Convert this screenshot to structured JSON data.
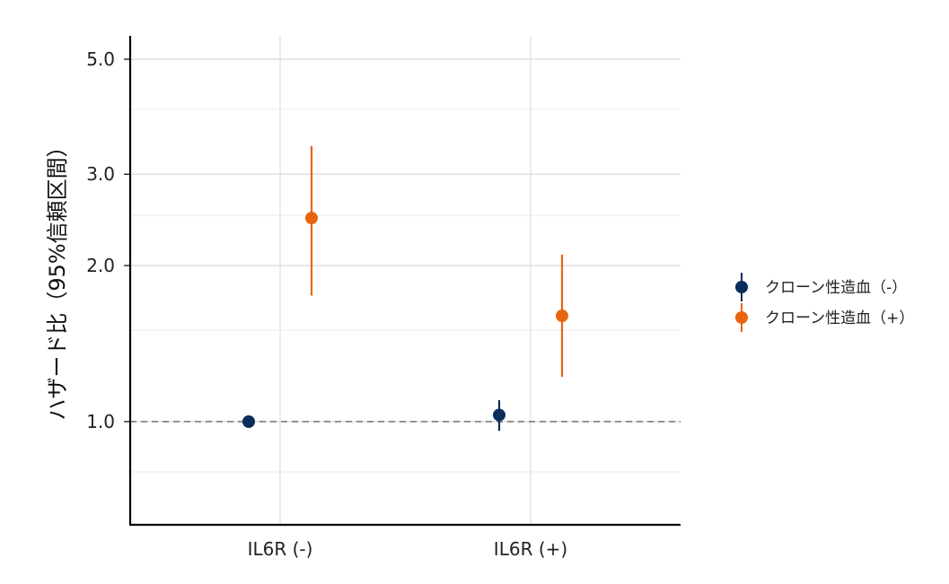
{
  "chart_data": {
    "type": "scatter",
    "subtype": "point-range (estimate with 95% CI)",
    "title": "",
    "xlabel": "",
    "ylabel": "ハザード比（95%信頼区間）",
    "y_scale": "log",
    "ylim": [
      0.75,
      5.3
    ],
    "y_ticks": [
      1.0,
      2.0,
      3.0,
      5.0
    ],
    "y_tick_labels": [
      "1.0",
      "2.0",
      "3.0",
      "5.0"
    ],
    "y_minor_grid": [
      0.8,
      1.5,
      2.5,
      4.0
    ],
    "reference_line": 1.0,
    "categories": [
      "IL6R (-)",
      "IL6R (+)"
    ],
    "series": [
      {
        "name": "クローン性造血（-）",
        "color": "#0b2d5c",
        "points": [
          {
            "category": "IL6R (-)",
            "estimate": 1.0,
            "lower": 1.0,
            "upper": 1.0
          },
          {
            "category": "IL6R (+)",
            "estimate": 1.03,
            "lower": 0.96,
            "upper": 1.1
          }
        ]
      },
      {
        "name": "クローン性造血（+）",
        "color": "#e8650e",
        "points": [
          {
            "category": "IL6R (-)",
            "estimate": 2.47,
            "lower": 1.75,
            "upper": 3.4
          },
          {
            "category": "IL6R (+)",
            "estimate": 1.6,
            "lower": 1.22,
            "upper": 2.1
          }
        ]
      }
    ],
    "grid": true,
    "legend_position": "right"
  }
}
